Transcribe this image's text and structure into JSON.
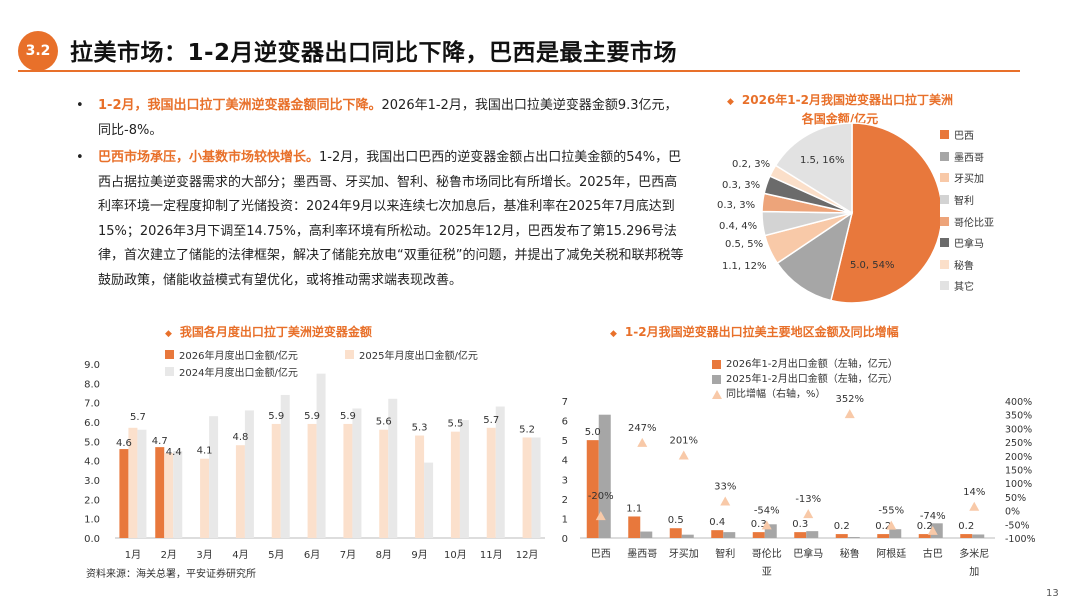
{
  "header": {
    "badge": "3.2",
    "title": "拉美市场：1-2月逆变器出口同比下降，巴西是最主要市场"
  },
  "bullets": [
    {
      "dot": "•",
      "highlight": "1-2月，我国出口拉丁美洲逆变器金额同比下降。",
      "text": "2026年1-2月，我国出口拉美逆变器金额9.3亿元，同比-8%。"
    },
    {
      "dot": "•",
      "highlight": "巴西市场承压，小基数市场较快增长。",
      "text": "1-2月，我国出口巴西的逆变器金额占出口拉美金额的54%，巴西占据拉美逆变器需求的大部分；墨西哥、牙买加、智利、秘鲁市场同比有所增长。2025年，巴西高利率环境一定程度抑制了光储投资：2024年9月以来连续七次加息后，基准利率在2025年7月底达到15%；2026年3月下调至14.75%，高利率环境有所松动。2025年12月，巴西发布了第15.296号法律，首次建立了储能的法律框架，解决了储能充放电“双重征税”的问题，并提出了减免关税和联邦税等鼓励政策，储能收益模式有望优化，或将推动需求端表现改善。"
    }
  ],
  "pie": {
    "title_line1": "2026年1-2月我国逆变器出口拉丁美洲",
    "title_line2": "各国金额/亿元",
    "diamond": "◆",
    "legend_marker": "■",
    "labels": [
      "5.0, 54%",
      "1.1, 12%",
      "0.5, 5%",
      "0.4, 4%",
      "0.3, 3%",
      "0.3, 3%",
      "0.2, 3%",
      "1.5, 16%"
    ]
  },
  "bar1": {
    "title": "我国各月度出口拉丁美洲逆变器金额",
    "diamond": "◆",
    "legend": [
      "2026年月度出口金额/亿元",
      "2025年月度出口金额/亿元",
      "2024年月度出口金额/亿元"
    ]
  },
  "bar2": {
    "title": "1-2月我国逆变器出口拉美主要地区金额及同比增幅",
    "diamond": "◆",
    "legend": [
      "2026年1-2月出口金额（左轴，亿元）",
      "2025年1-2月出口金额（左轴，亿元）",
      "同比增幅（右轴，%）"
    ]
  },
  "chart_data": [
    {
      "type": "pie",
      "title": "2026年1-2月我国逆变器出口拉丁美洲各国金额/亿元",
      "categories": [
        "巴西",
        "墨西哥",
        "牙买加",
        "智利",
        "哥伦比亚",
        "巴拿马",
        "秘鲁",
        "其它"
      ],
      "values": [
        5.0,
        1.1,
        0.5,
        0.4,
        0.3,
        0.3,
        0.2,
        1.5
      ],
      "percents": [
        54,
        12,
        5,
        4,
        3,
        3,
        3,
        16
      ],
      "colors": [
        "#e8783c",
        "#a6a6a6",
        "#f8c9a8",
        "#d3d3d3",
        "#eda47a",
        "#6b6b6b",
        "#fbdfc9",
        "#e2e2e2"
      ]
    },
    {
      "type": "bar",
      "title": "我国各月度出口拉丁美洲逆变器金额",
      "categories": [
        "1月",
        "2月",
        "3月",
        "4月",
        "5月",
        "6月",
        "7月",
        "8月",
        "9月",
        "10月",
        "11月",
        "12月"
      ],
      "series": [
        {
          "name": "2026年月度出口金额/亿元",
          "color": "#e8783c",
          "values": [
            4.6,
            4.7,
            null,
            null,
            null,
            null,
            null,
            null,
            null,
            null,
            null,
            null
          ]
        },
        {
          "name": "2025年月度出口金额/亿元",
          "color": "#fbe0cc",
          "values": [
            5.7,
            4.4,
            4.1,
            4.8,
            5.9,
            5.9,
            5.9,
            5.6,
            5.3,
            5.5,
            5.7,
            5.2
          ]
        },
        {
          "name": "2024年月度出口金额/亿元",
          "color": "#e8e8e8",
          "values": [
            5.6,
            4.5,
            6.3,
            6.6,
            7.4,
            8.5,
            6.7,
            7.2,
            3.9,
            6.1,
            6.8,
            5.2
          ]
        }
      ],
      "data_labels": {
        "2026": [
          "4.6",
          "4.7"
        ],
        "2025": [
          "5.7",
          "4.4",
          "4.1",
          "4.8",
          "5.9",
          "5.9",
          "5.9",
          "5.6",
          "5.3",
          "5.5",
          "5.7",
          "5.2"
        ]
      },
      "yticks": [
        "0.0",
        "1.0",
        "2.0",
        "3.0",
        "4.0",
        "5.0",
        "6.0",
        "7.0",
        "8.0",
        "9.0"
      ],
      "ylim": [
        0,
        9
      ]
    },
    {
      "type": "bar",
      "title": "1-2月我国逆变器出口拉美主要地区金额及同比增幅",
      "categories": [
        "巴西",
        "墨西哥",
        "牙买加",
        "智利",
        "哥伦比亚",
        "巴拿马",
        "秘鲁",
        "阿根廷",
        "古巴",
        "多米尼加"
      ],
      "series": [
        {
          "name": "2026年1-2月出口金额（左轴，亿元）",
          "color": "#e8783c",
          "values": [
            5.0,
            1.1,
            0.5,
            0.4,
            0.3,
            0.3,
            0.2,
            0.2,
            0.2,
            0.2
          ]
        },
        {
          "name": "2025年1-2月出口金额（左轴，亿元）",
          "color": "#a6a6a6",
          "values": [
            6.3,
            0.33,
            0.17,
            0.3,
            0.7,
            0.35,
            0.05,
            0.45,
            0.75,
            0.18
          ]
        },
        {
          "name": "同比增幅（右轴，%）",
          "color": "#f8c9a8",
          "values": [
            -20,
            247,
            201,
            33,
            -54,
            -13,
            352,
            -55,
            -74,
            14
          ]
        }
      ],
      "amount_labels": [
        "5.0",
        "1.1",
        "0.5",
        "0.4",
        "0.3",
        "0.3",
        "0.2",
        "0.2",
        "0.2",
        "0.2"
      ],
      "growth_labels": [
        "-20%",
        "247%",
        "201%",
        "33%",
        "-54%",
        "-13%",
        "352%",
        "-55%",
        "-74%",
        "14%"
      ],
      "yticks_left": [
        "0",
        "1",
        "2",
        "3",
        "4",
        "5",
        "6",
        "7"
      ],
      "yticks_right": [
        "-100%",
        "-50%",
        "0%",
        "50%",
        "100%",
        "150%",
        "200%",
        "250%",
        "300%",
        "350%",
        "400%"
      ],
      "ylim_left": [
        0,
        7
      ],
      "ylim_right": [
        -100,
        400
      ]
    }
  ],
  "footer": {
    "source": "资料来源：海关总署，平安证券研究所",
    "page": "13"
  }
}
